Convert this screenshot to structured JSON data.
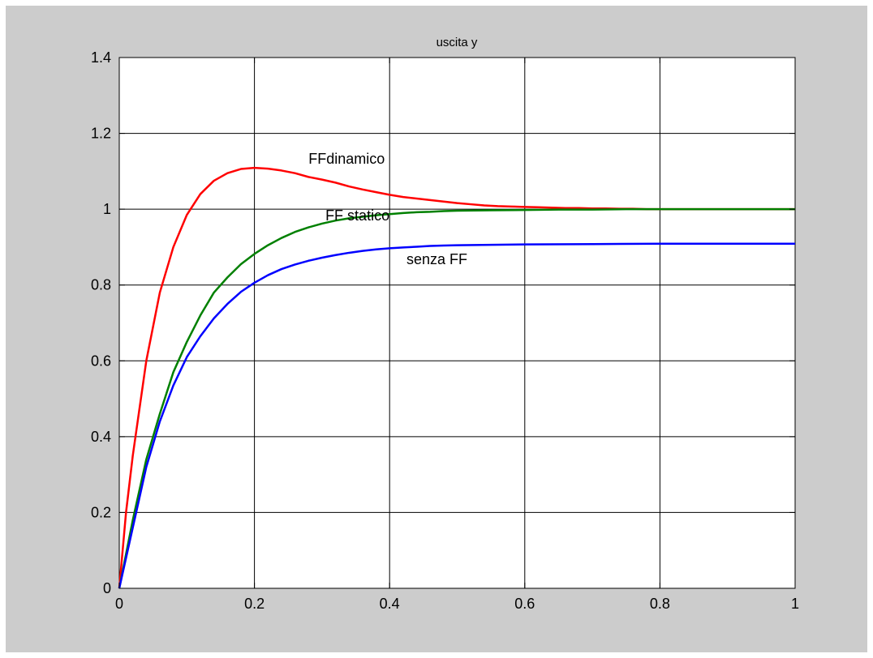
{
  "chart_data": {
    "type": "line",
    "title": "uscita y",
    "xlabel": "",
    "ylabel": "",
    "xlim": [
      0,
      1
    ],
    "ylim": [
      0,
      1.4
    ],
    "grid": true,
    "x_ticks": [
      0,
      0.2,
      0.4,
      0.6,
      0.8,
      1
    ],
    "x_tick_labels": [
      "0",
      "0.2",
      "0.4",
      "0.6",
      "0.8",
      "1"
    ],
    "y_ticks": [
      0,
      0.2,
      0.4,
      0.6,
      0.8,
      1,
      1.2,
      1.4
    ],
    "y_tick_labels": [
      "0",
      "0.2",
      "0.4",
      "0.6",
      "0.8",
      "1",
      "1.2",
      "1.4"
    ],
    "series": [
      {
        "color": "#ff0000",
        "x": [
          0,
          0.01,
          0.02,
          0.04,
          0.06,
          0.08,
          0.1,
          0.12,
          0.14,
          0.16,
          0.18,
          0.2,
          0.22,
          0.24,
          0.26,
          0.28,
          0.3,
          0.32,
          0.34,
          0.36,
          0.38,
          0.4,
          0.42,
          0.44,
          0.46,
          0.48,
          0.5,
          0.52,
          0.54,
          0.56,
          0.58,
          0.6,
          0.62,
          0.64,
          0.66,
          0.68,
          0.7,
          0.72,
          0.74,
          0.76,
          0.78,
          0.8,
          0.85,
          0.9,
          0.95,
          1.0
        ],
        "y": [
          0,
          0.2,
          0.35,
          0.6,
          0.78,
          0.9,
          0.985,
          1.04,
          1.075,
          1.095,
          1.106,
          1.109,
          1.107,
          1.102,
          1.095,
          1.085,
          1.078,
          1.07,
          1.06,
          1.052,
          1.045,
          1.038,
          1.032,
          1.028,
          1.024,
          1.02,
          1.016,
          1.013,
          1.01,
          1.008,
          1.007,
          1.006,
          1.005,
          1.004,
          1.003,
          1.003,
          1.002,
          1.002,
          1.001,
          1.001,
          1.0,
          1.0,
          1.0,
          1.0,
          1.0,
          1.0
        ]
      },
      {
        "color": "#008000",
        "x": [
          0,
          0.01,
          0.02,
          0.04,
          0.06,
          0.08,
          0.1,
          0.12,
          0.14,
          0.16,
          0.18,
          0.2,
          0.22,
          0.24,
          0.26,
          0.28,
          0.3,
          0.32,
          0.34,
          0.36,
          0.38,
          0.4,
          0.42,
          0.44,
          0.46,
          0.48,
          0.5,
          0.55,
          0.6,
          0.65,
          0.7,
          0.75,
          0.8,
          0.9,
          1.0
        ],
        "y": [
          0,
          0.09,
          0.18,
          0.34,
          0.46,
          0.57,
          0.65,
          0.72,
          0.78,
          0.82,
          0.855,
          0.882,
          0.905,
          0.924,
          0.94,
          0.952,
          0.962,
          0.97,
          0.976,
          0.98,
          0.984,
          0.987,
          0.99,
          0.992,
          0.993,
          0.995,
          0.996,
          0.997,
          0.998,
          0.999,
          0.999,
          1.0,
          1.0,
          1.0,
          1.0
        ]
      },
      {
        "color": "#0000ff",
        "x": [
          0,
          0.01,
          0.02,
          0.04,
          0.06,
          0.08,
          0.1,
          0.12,
          0.14,
          0.16,
          0.18,
          0.2,
          0.22,
          0.24,
          0.26,
          0.28,
          0.3,
          0.32,
          0.34,
          0.36,
          0.38,
          0.4,
          0.42,
          0.44,
          0.46,
          0.48,
          0.5,
          0.55,
          0.6,
          0.7,
          0.8,
          0.9,
          1.0
        ],
        "y": [
          0,
          0.08,
          0.16,
          0.32,
          0.44,
          0.535,
          0.61,
          0.665,
          0.712,
          0.75,
          0.782,
          0.806,
          0.826,
          0.842,
          0.854,
          0.864,
          0.872,
          0.879,
          0.885,
          0.89,
          0.894,
          0.897,
          0.899,
          0.901,
          0.903,
          0.904,
          0.905,
          0.906,
          0.907,
          0.908,
          0.909,
          0.909,
          0.909
        ]
      }
    ],
    "annotations": [
      {
        "text": "FFdinamico",
        "x": 0.28,
        "y": 1.12
      },
      {
        "text": "FF statico",
        "x": 0.305,
        "y": 0.97
      },
      {
        "text": "senza FF",
        "x": 0.425,
        "y": 0.855
      }
    ]
  }
}
